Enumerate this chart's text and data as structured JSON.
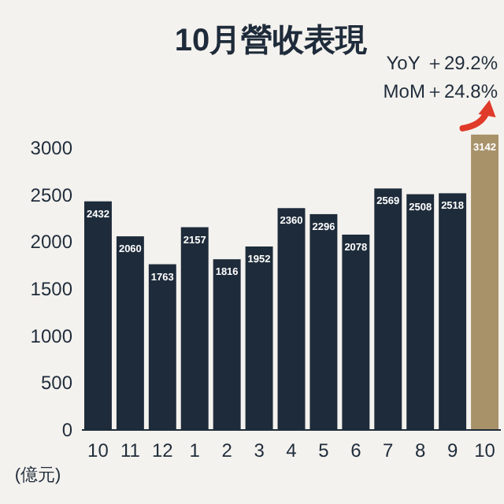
{
  "chart_data": {
    "type": "bar",
    "title": "10月營收表現",
    "ylabel": "(億元)",
    "categories": [
      "10",
      "11",
      "12",
      "1",
      "2",
      "3",
      "4",
      "5",
      "6",
      "7",
      "8",
      "9",
      "10"
    ],
    "values": [
      2432,
      2060,
      1763,
      2157,
      1816,
      1952,
      2360,
      2296,
      2078,
      2569,
      2508,
      2518,
      3142
    ],
    "colors": [
      "#1e2b3a",
      "#1e2b3a",
      "#1e2b3a",
      "#1e2b3a",
      "#1e2b3a",
      "#1e2b3a",
      "#1e2b3a",
      "#1e2b3a",
      "#1e2b3a",
      "#1e2b3a",
      "#1e2b3a",
      "#1e2b3a",
      "#a8926a"
    ],
    "ylim": [
      0,
      3200
    ],
    "yticks": [
      0,
      500,
      1000,
      1500,
      2000,
      2500,
      3000
    ],
    "data_labels": true,
    "grid": false,
    "annotations": [
      "YoY ＋29.2%",
      "MoM＋24.8%"
    ]
  }
}
